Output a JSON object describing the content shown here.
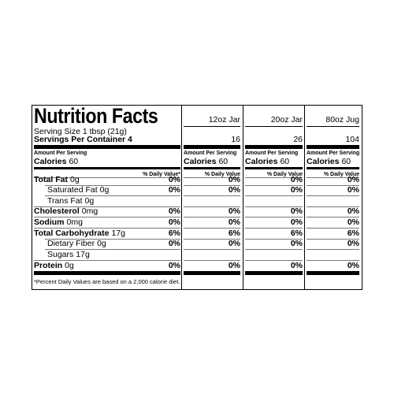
{
  "title": "Nutrition Facts",
  "serving_size": "Serving Size 1 tbsp (21g)",
  "servings_per_container": "Servings Per Container 4",
  "amount_per_serving": "Amount Per Serving",
  "calories": {
    "label": "Calories",
    "value": "60"
  },
  "daily_value_header": "% Daily Value*",
  "nutrients": [
    {
      "name": "Total Fat",
      "amount": "0g",
      "dv": "0%"
    },
    {
      "name": "Saturated Fat",
      "amount": "0g",
      "dv": "0%"
    },
    {
      "name": "Trans Fat",
      "amount": "0g",
      "dv": null
    },
    {
      "name": "Cholesterol",
      "amount": "0mg",
      "dv": "0%"
    },
    {
      "name": "Sodium",
      "amount": "0mg",
      "dv": "0%"
    },
    {
      "name": "Total Carbohydrate",
      "amount": "17g",
      "dv": "6%"
    },
    {
      "name": "Dietary Fiber",
      "amount": "0g",
      "dv": "0%"
    },
    {
      "name": "Sugars",
      "amount": "17g",
      "dv": null
    },
    {
      "name": "Protein",
      "amount": "0g",
      "dv": "0%"
    }
  ],
  "footnote": "*Percent Daily Values are based on a 2,000 calorie diet.",
  "columns": [
    {
      "name": "12oz Jar",
      "servings": "16",
      "amount_per_serving": "Amount Per Serving",
      "calories": {
        "label": "Calories",
        "value": "60"
      },
      "daily_value_header": "% Daily Value",
      "dv": [
        "0%",
        "0%",
        null,
        "0%",
        "0%",
        "6%",
        "0%",
        null,
        "0%"
      ]
    },
    {
      "name": "20oz Jar",
      "servings": "26",
      "amount_per_serving": "Amount Per Serving",
      "calories": {
        "label": "Calories",
        "value": "60"
      },
      "daily_value_header": "% Daily Value",
      "dv": [
        "0%",
        "0%",
        null,
        "0%",
        "0%",
        "6%",
        "0%",
        null,
        "0%"
      ]
    },
    {
      "name": "80oz Jug",
      "servings": "104",
      "amount_per_serving": "Amount Per Serving",
      "calories": {
        "label": "Calories",
        "value": "60"
      },
      "daily_value_header": "% Daily Value",
      "dv": [
        "0%",
        "0%",
        null,
        "0%",
        "0%",
        "6%",
        "0%",
        null,
        "0%"
      ]
    }
  ]
}
